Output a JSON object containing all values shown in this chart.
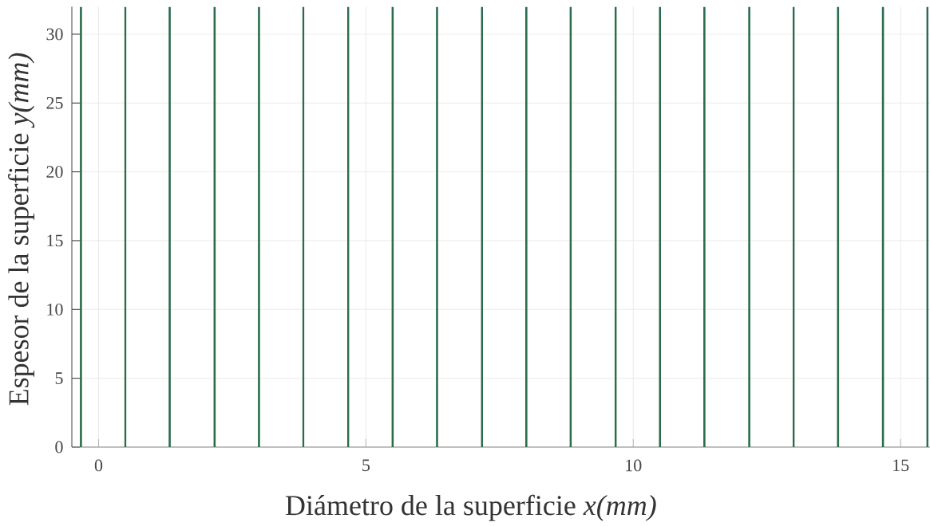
{
  "chart_data": {
    "type": "line",
    "xlabel": "Diámetro de la superficie *x(mm)*",
    "ylabel": "Espesor de la superficie *y(mm)*",
    "xlim": [
      -0.5,
      15.55
    ],
    "ylim": [
      0,
      32
    ],
    "xticks": [
      0,
      5,
      10,
      15
    ],
    "yticks": [
      0,
      5,
      10,
      15,
      20,
      25,
      30
    ],
    "grid": true,
    "marker": "none",
    "series": [
      {
        "color": "#2b6c4c",
        "x": [
          -0.33,
          -0.33
        ],
        "values": [
          0,
          32
        ]
      },
      {
        "color": "#2b6c4c",
        "x": [
          0.5,
          0.5
        ],
        "values": [
          0,
          32
        ]
      },
      {
        "color": "#2b6c4c",
        "x": [
          1.33,
          1.33
        ],
        "values": [
          0,
          32
        ]
      },
      {
        "color": "#2b6c4c",
        "x": [
          2.17,
          2.17
        ],
        "values": [
          0,
          32
        ]
      },
      {
        "color": "#2b6c4c",
        "x": [
          3,
          3
        ],
        "values": [
          0,
          32
        ]
      },
      {
        "color": "#2b6c4c",
        "x": [
          3.83,
          3.83
        ],
        "values": [
          0,
          32
        ]
      },
      {
        "color": "#2b6c4c",
        "x": [
          4.67,
          4.67
        ],
        "values": [
          0,
          32
        ]
      },
      {
        "color": "#2b6c4c",
        "x": [
          5.5,
          5.5
        ],
        "values": [
          0,
          32
        ]
      },
      {
        "color": "#2b6c4c",
        "x": [
          6.33,
          6.33
        ],
        "values": [
          0,
          32
        ]
      },
      {
        "color": "#2b6c4c",
        "x": [
          7.17,
          7.17
        ],
        "values": [
          0,
          32
        ]
      },
      {
        "color": "#2b6c4c",
        "x": [
          8,
          8
        ],
        "values": [
          0,
          32
        ]
      },
      {
        "color": "#2b6c4c",
        "x": [
          8.83,
          8.83
        ],
        "values": [
          0,
          32
        ]
      },
      {
        "color": "#2b6c4c",
        "x": [
          9.67,
          9.67
        ],
        "values": [
          0,
          32
        ]
      },
      {
        "color": "#2b6c4c",
        "x": [
          10.5,
          10.5
        ],
        "values": [
          0,
          32
        ]
      },
      {
        "color": "#2b6c4c",
        "x": [
          11.33,
          11.33
        ],
        "values": [
          0,
          32
        ]
      },
      {
        "color": "#2b6c4c",
        "x": [
          12.17,
          12.17
        ],
        "values": [
          0,
          32
        ]
      },
      {
        "color": "#2b6c4c",
        "x": [
          13,
          13
        ],
        "values": [
          0,
          32
        ]
      },
      {
        "color": "#2b6c4c",
        "x": [
          13.83,
          13.83
        ],
        "values": [
          0,
          32
        ]
      },
      {
        "color": "#2b6c4c",
        "x": [
          14.67,
          14.67
        ],
        "values": [
          0,
          32
        ]
      },
      {
        "color": "#2b6c4c",
        "x": [
          15.5,
          15.5
        ],
        "values": [
          0,
          32
        ]
      }
    ]
  }
}
